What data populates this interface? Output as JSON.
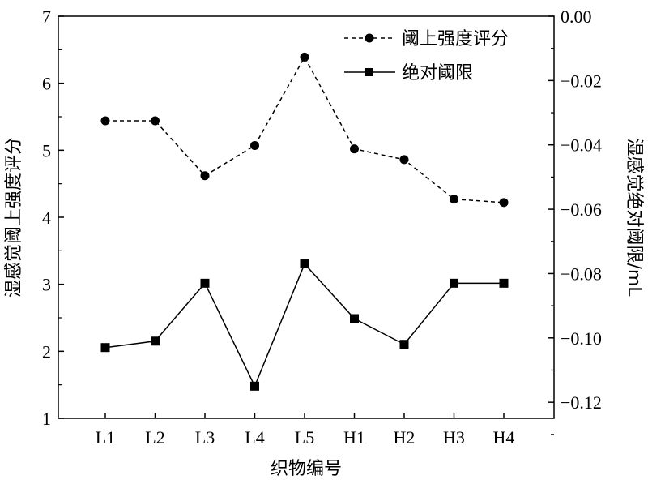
{
  "chart_data": {
    "type": "line",
    "categories": [
      "L1",
      "L2",
      "L3",
      "L4",
      "L5",
      "H1",
      "H2",
      "H3",
      "H4"
    ],
    "xlabel": "织物编号",
    "ylabel_left": "湿感觉阈上强度评分",
    "ylabel_right": "湿感觉绝对阈限/mL",
    "y_left": {
      "min": 1,
      "max": 7,
      "ticks": [
        "1",
        "2",
        "3",
        "4",
        "5",
        "6",
        "7"
      ]
    },
    "y_right": {
      "min": -0.125,
      "max": 0.0,
      "ticks": [
        "0.00",
        "−0.02",
        "−0.04",
        "−0.06",
        "−0.08",
        "−0.10",
        "−0.12"
      ]
    },
    "series": [
      {
        "name": "阈上强度评分",
        "axis": "left",
        "line_style": "dashed",
        "marker": "circle",
        "values": [
          5.44,
          5.44,
          4.62,
          5.07,
          6.39,
          5.02,
          4.86,
          4.27,
          4.22
        ]
      },
      {
        "name": "绝对阈限",
        "axis": "right",
        "line_style": "solid",
        "marker": "square",
        "values": [
          -0.103,
          -0.101,
          -0.083,
          -0.115,
          -0.077,
          -0.094,
          -0.102,
          -0.083,
          -0.083
        ]
      }
    ],
    "legend_position": "top-right",
    "grid": false,
    "colors": {
      "line": "#000000",
      "background": "#ffffff"
    }
  }
}
